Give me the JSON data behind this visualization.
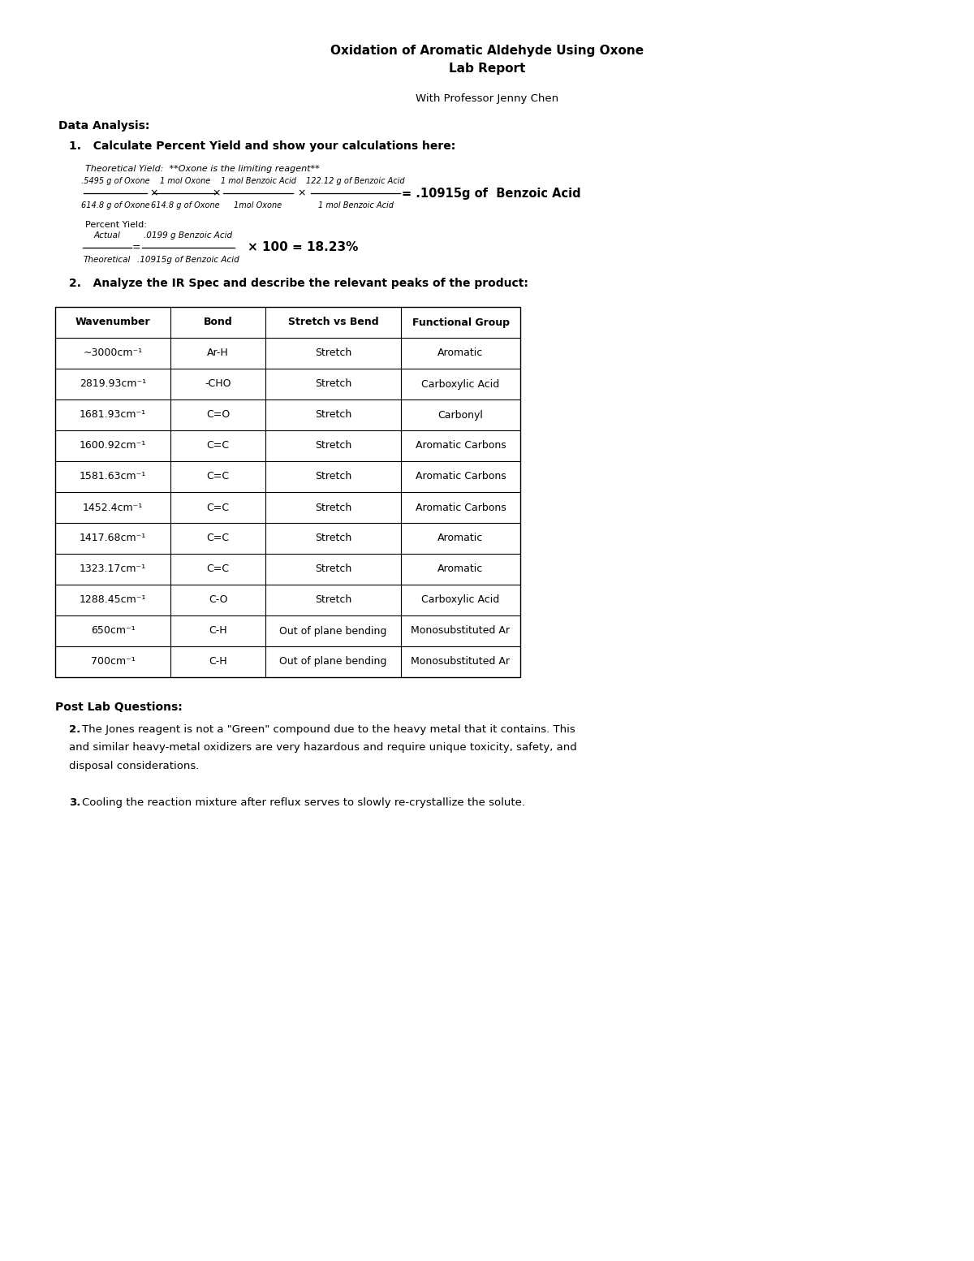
{
  "title_line1": "Oxidation of Aromatic Aldehyde Using Oxone",
  "title_line2": "Lab Report",
  "subtitle": "With Professor Jenny Chen",
  "section_data_analysis": "Data Analysis:",
  "q1_header": "1.   Calculate Percent Yield and show your calculations here:",
  "theoretical_yield_label": "Theoretical Yield:  **Oxone is the limiting reagent**",
  "theoretical_num1": ".5495 g of Oxone",
  "theoretical_den1": "614.8 g of Oxone",
  "theoretical_num2": "1 mol Oxone",
  "theoretical_den2": "614.8 g of Oxone",
  "theoretical_num3": "1 mol Benzoic Acid",
  "theoretical_den3": "1mol Oxone",
  "theoretical_num4": "122.12 g of Benzoic Acid",
  "theoretical_den4": "1 mol Benzoic Acid",
  "theoretical_result": "= .10915g of  Benzoic Acid",
  "percent_yield_label": "Percent Yield:",
  "percent_num1": "Actual",
  "percent_den1": "Theoretical",
  "percent_num2": ".0199 g Benzoic Acid",
  "percent_den2": ".10915g of Benzoic Acid",
  "percent_result": "× 100 = 18.23%",
  "q2_header": "2.   Analyze the IR Spec and describe the relevant peaks of the product:",
  "table_headers": [
    "Wavenumber",
    "Bond",
    "Stretch vs Bend",
    "Functional Group"
  ],
  "table_data": [
    [
      "~3000cm⁻¹",
      "Ar-H",
      "Stretch",
      "Aromatic"
    ],
    [
      "2819.93cm⁻¹",
      "-CHO",
      "Stretch",
      "Carboxylic Acid"
    ],
    [
      "1681.93cm⁻¹",
      "C=O",
      "Stretch",
      "Carbonyl"
    ],
    [
      "1600.92cm⁻¹",
      "C=C",
      "Stretch",
      "Aromatic Carbons"
    ],
    [
      "1581.63cm⁻¹",
      "C=C",
      "Stretch",
      "Aromatic Carbons"
    ],
    [
      "1452.4cm⁻¹",
      "C=C",
      "Stretch",
      "Aromatic Carbons"
    ],
    [
      "1417.68cm⁻¹",
      "C=C",
      "Stretch",
      "Aromatic"
    ],
    [
      "1323.17cm⁻¹",
      "C=C",
      "Stretch",
      "Aromatic"
    ],
    [
      "1288.45cm⁻¹",
      "C-O",
      "Stretch",
      "Carboxylic Acid"
    ],
    [
      "650cm⁻¹",
      "C-H",
      "Out of plane bending",
      "Monosubstituted Ar"
    ],
    [
      "700cm⁻¹",
      "C-H",
      "Out of plane bending",
      "Monosubstituted Ar"
    ]
  ],
  "post_lab_header": "Post Lab Questions:",
  "post_q2_text": "The Jones reagent is not a \"Green\" compound due to the heavy metal that it contains. This\nand similar heavy-metal oxidizers are very hazardous and require unique toxicity, safety, and\ndisposal considerations.",
  "post_q3_text": "Cooling the reaction mixture after reflux serves to slowly re-crystallize the solute.",
  "bg_color": "#ffffff",
  "text_color": "#000000"
}
